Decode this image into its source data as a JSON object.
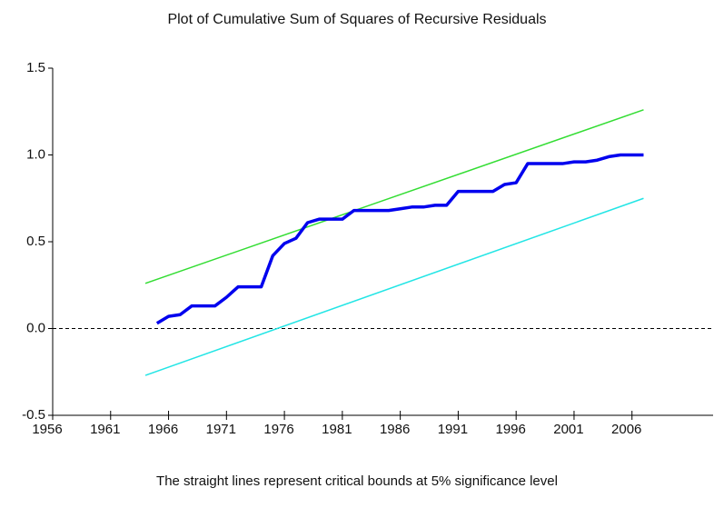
{
  "chart_data": {
    "type": "line",
    "title": "Plot of Cumulative Sum of Squares of Recursive Residuals",
    "footnote": "The straight lines represent critical bounds at 5% significance level",
    "xlim": [
      1956,
      2013
    ],
    "xticks": [
      1956,
      1961,
      1966,
      1971,
      1976,
      1981,
      1986,
      1991,
      1996,
      2001,
      2006
    ],
    "ylim": [
      -0.5,
      1.5
    ],
    "yticks": [
      {
        "value": 1.5,
        "label": "1.5"
      },
      {
        "value": 1.0,
        "label": "1.0"
      },
      {
        "value": 0.5,
        "label": "0.5"
      },
      {
        "value": 0,
        "label": "0.0"
      },
      {
        "value": -0.5,
        "label": "-0.5"
      }
    ],
    "reference_line": 0,
    "series": [
      {
        "color": "#0000ee",
        "width": 3.5,
        "x": [
          1965,
          1966,
          1967,
          1968,
          1969,
          1970,
          1971,
          1972,
          1973,
          1974,
          1975,
          1976,
          1977,
          1978,
          1979,
          1980,
          1981,
          1982,
          1983,
          1984,
          1985,
          1986,
          1987,
          1988,
          1989,
          1990,
          1991,
          1992,
          1993,
          1994,
          1995,
          1996,
          1997,
          1998,
          1999,
          2000,
          2001,
          2002,
          2003,
          2004,
          2005,
          2006,
          2007
        ],
        "values": [
          0.03,
          0.07,
          0.08,
          0.13,
          0.13,
          0.13,
          0.18,
          0.24,
          0.24,
          0.24,
          0.42,
          0.49,
          0.52,
          0.61,
          0.63,
          0.63,
          0.63,
          0.68,
          0.68,
          0.68,
          0.68,
          0.69,
          0.7,
          0.7,
          0.71,
          0.71,
          0.79,
          0.79,
          0.79,
          0.79,
          0.83,
          0.84,
          0.95,
          0.95,
          0.95,
          0.95,
          0.96,
          0.96,
          0.97,
          0.99,
          1.0,
          1.0,
          1.0
        ]
      },
      {
        "color": "#33dd33",
        "width": 1.5,
        "x": [
          1964,
          2007
        ],
        "values": [
          0.26,
          1.26
        ]
      },
      {
        "color": "#22e5e5",
        "width": 1.5,
        "x": [
          1964,
          2007
        ],
        "values": [
          -0.27,
          0.75
        ]
      }
    ]
  }
}
